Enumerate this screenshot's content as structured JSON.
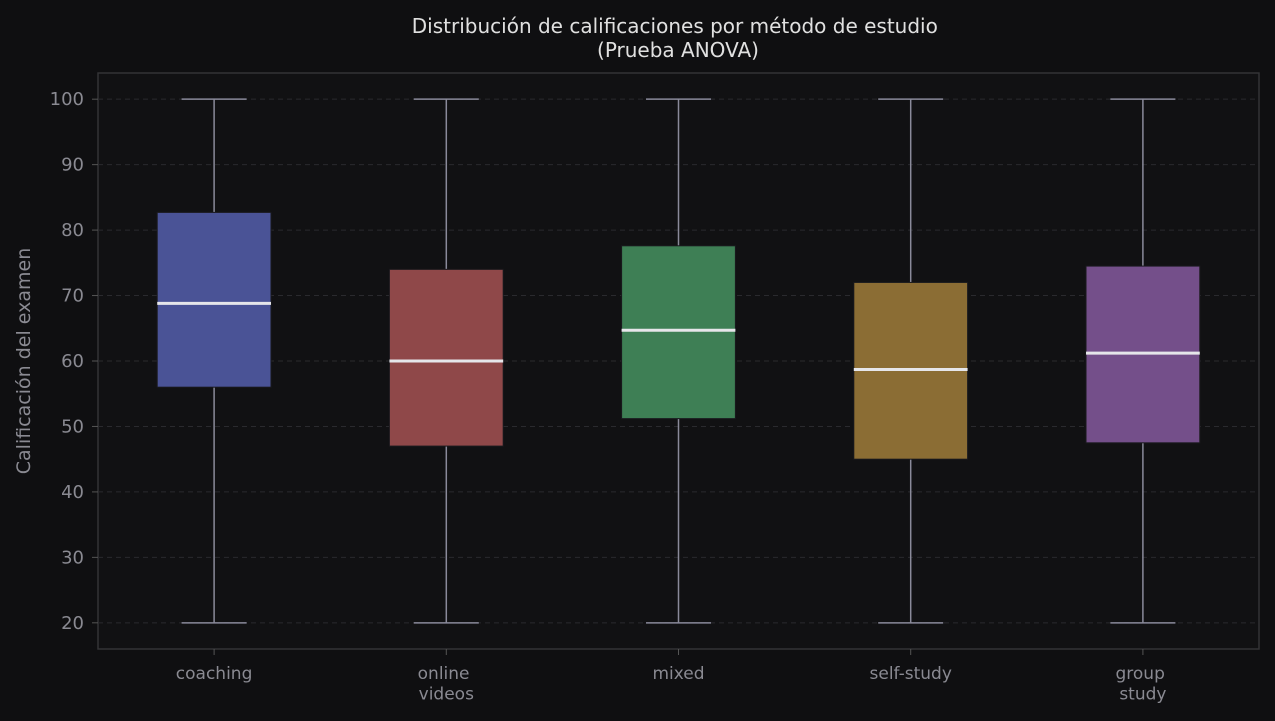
{
  "chart_data": {
    "type": "box",
    "title": "Distribución de calificaciones por método de estudio\n(Prueba ANOVA)",
    "ylabel": "Calificación del examen",
    "categories": [
      "coaching",
      "online\nvideos",
      "mixed",
      "self-study",
      "group\nstudy"
    ],
    "colors": [
      "#4a5396",
      "#8f4849",
      "#3e7f55",
      "#8b6d34",
      "#744f8a"
    ],
    "boxes": [
      {
        "whislo": 20,
        "q1": 56,
        "med": 68.8,
        "q3": 82.7,
        "whishi": 100
      },
      {
        "whislo": 20,
        "q1": 47,
        "med": 60,
        "q3": 74,
        "whishi": 100
      },
      {
        "whislo": 20,
        "q1": 51.2,
        "med": 64.7,
        "q3": 77.6,
        "whishi": 100
      },
      {
        "whislo": 20,
        "q1": 45,
        "med": 58.7,
        "q3": 72,
        "whishi": 100
      },
      {
        "whislo": 20,
        "q1": 47.5,
        "med": 61.2,
        "q3": 74.5,
        "whishi": 100
      }
    ],
    "ylim": [
      16,
      104
    ],
    "yticks": [
      20,
      30,
      40,
      50,
      60,
      70,
      80,
      90,
      100
    ],
    "grid": true
  }
}
